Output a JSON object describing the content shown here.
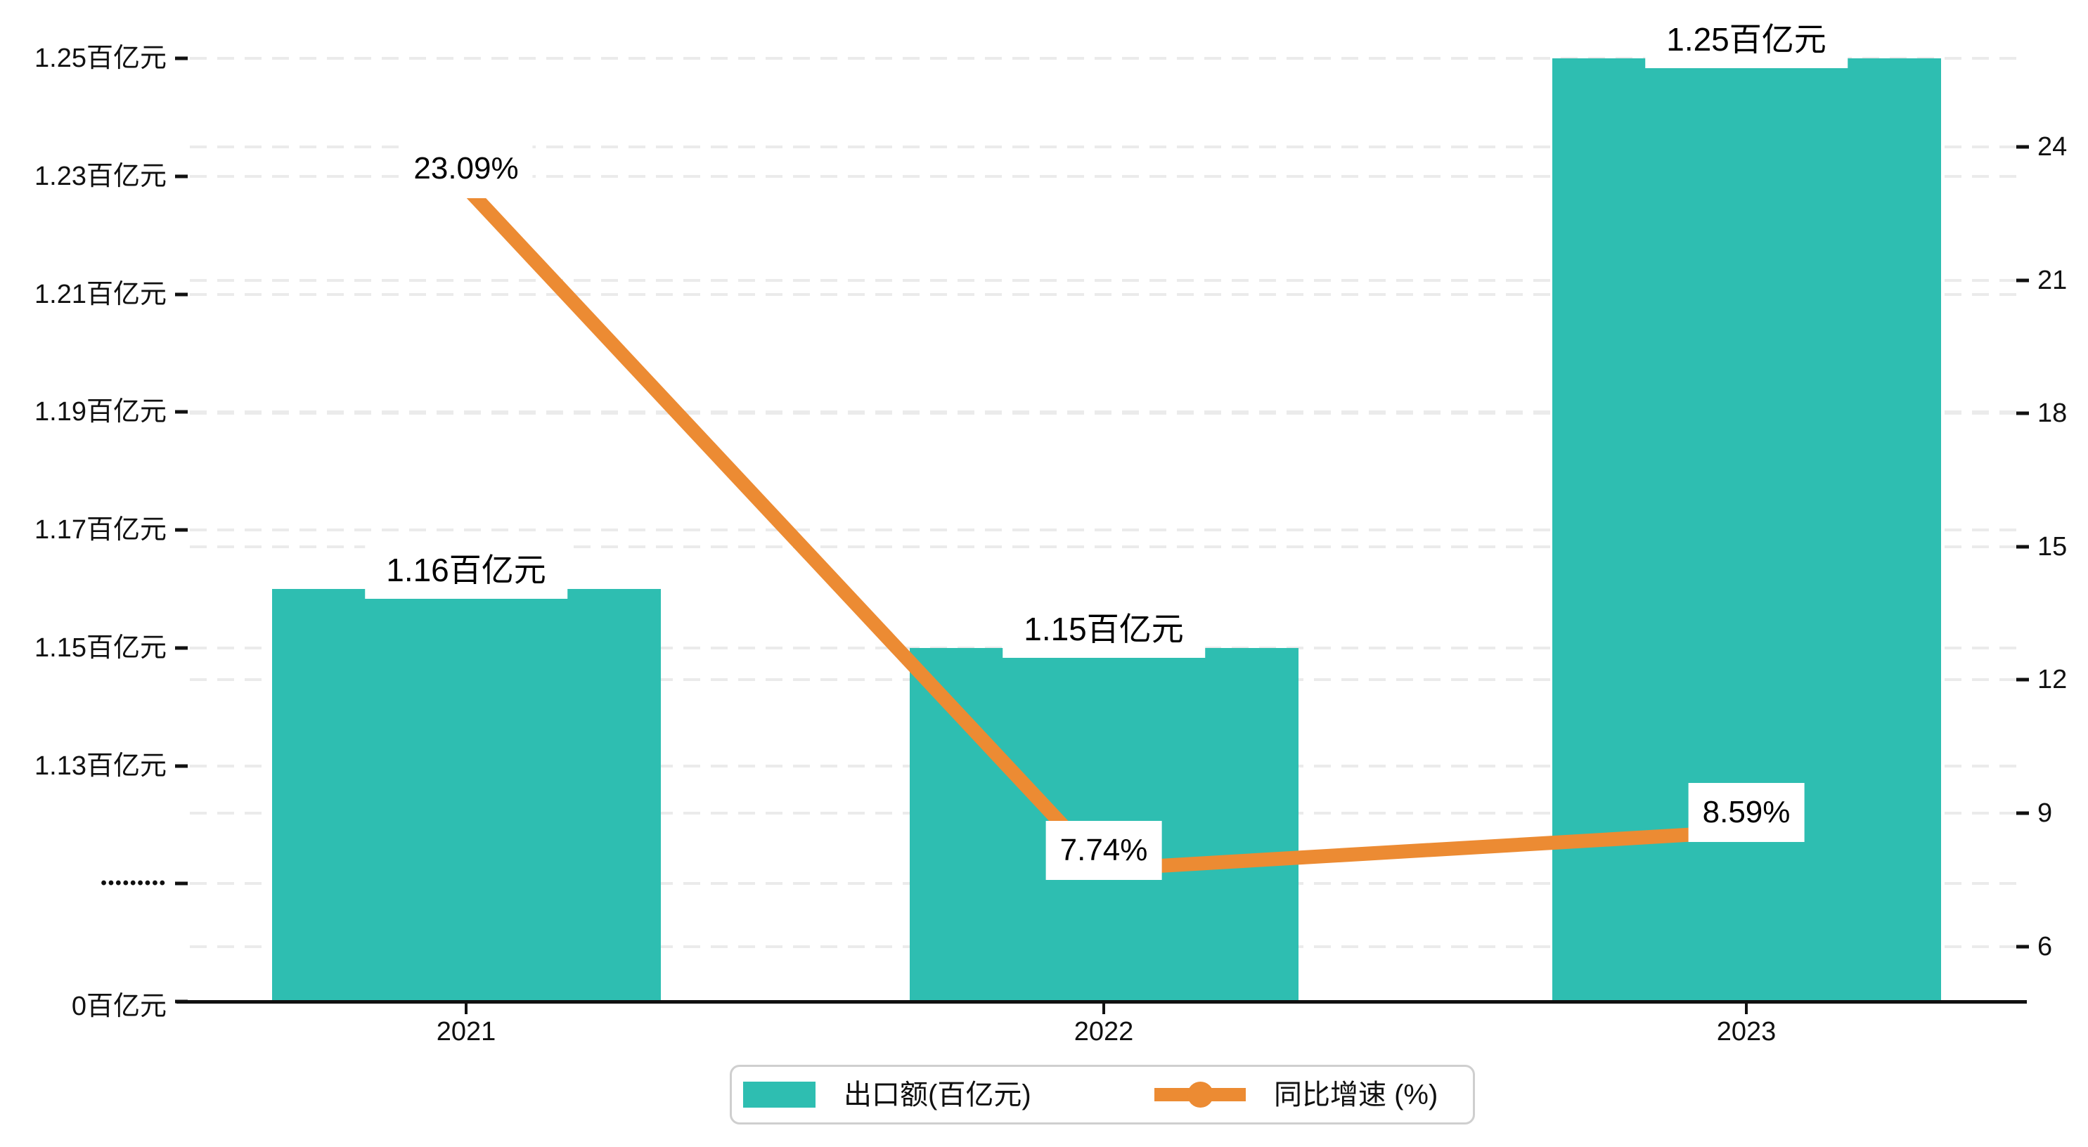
{
  "chart_data": {
    "type": "bar+line",
    "categories": [
      "2021",
      "2022",
      "2023"
    ],
    "series": [
      {
        "name": "出口额(百亿元)",
        "type": "bar",
        "axis": "left",
        "unit": "百亿元",
        "values": [
          1.16,
          1.15,
          1.25
        ],
        "data_labels": [
          "1.16百亿元",
          "1.15百亿元",
          "1.25百亿元"
        ],
        "color": "#2ebeb1"
      },
      {
        "name": "同比增速 (%)",
        "type": "line",
        "axis": "right",
        "unit": "%",
        "values": [
          23.09,
          7.74,
          8.59
        ],
        "data_labels": [
          "23.09%",
          "7.74%",
          "8.59%"
        ],
        "color": "#ec8b33"
      }
    ],
    "left_axis": {
      "tick_labels": [
        "1.25百亿元",
        "1.23百亿元",
        "1.21百亿元",
        "1.19百亿元",
        "1.17百亿元",
        "1.15百亿元",
        "1.13百亿元",
        "•••••••••",
        "0百亿元"
      ],
      "axis_break": true,
      "tick_step": 0.02
    },
    "right_axis": {
      "tick_labels": [
        "24",
        "21",
        "18",
        "15",
        "12",
        "9",
        "6"
      ],
      "min": 6,
      "max": 24,
      "tick_step": 3
    },
    "grid": {
      "style": "dashed",
      "color": "#ebebeb"
    },
    "legend": {
      "position": "bottom",
      "items": [
        {
          "label": "出口额(百亿元)",
          "marker": "square",
          "color": "#2ebeb1"
        },
        {
          "label": "同比增速 (%)",
          "marker": "line-circle",
          "color": "#ec8b33"
        }
      ]
    }
  }
}
